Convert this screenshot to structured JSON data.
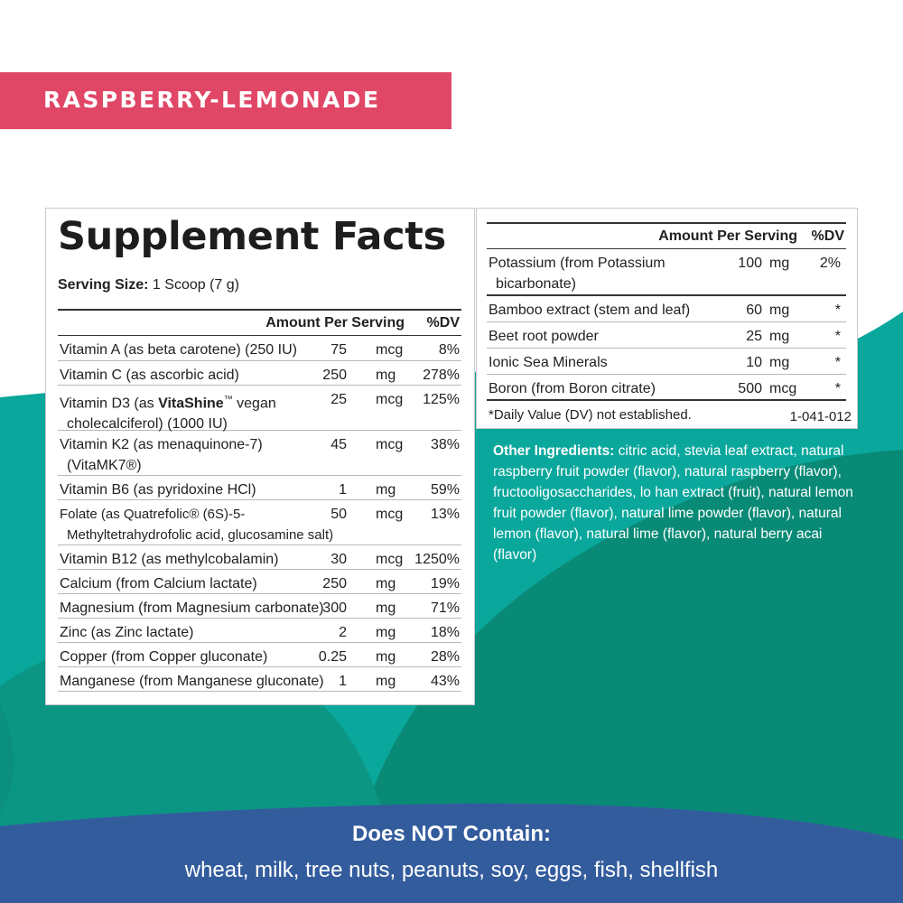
{
  "colors": {
    "banner": "#e04767",
    "teal_light": "#0aa79c",
    "teal_dark": "#098a76",
    "blue_band": "#335c9d",
    "white": "#ffffff"
  },
  "banner": {
    "label": "RASPBERRY-LEMONADE"
  },
  "facts": {
    "title": "Supplement Facts",
    "serving_label": "Serving Size:",
    "serving_value": " 1 Scoop (7 g)",
    "header_amount": "Amount Per Serving",
    "header_dv": "%DV",
    "rows": [
      {
        "name": "Vitamin A (as beta carotene) (250 IU)",
        "amount": "75",
        "unit": "mcg",
        "dv": "8%"
      },
      {
        "name": "Vitamin C (as ascorbic acid)",
        "amount": "250",
        "unit": "mg",
        "dv": "278%"
      },
      {
        "name_pre": "Vitamin D3 (as ",
        "name_bold": "VitaShine",
        "name_mark": "™",
        "name_post": " vegan",
        "name_line2": "cholecalciferol) (1000 IU)",
        "amount": "25",
        "unit": "mcg",
        "dv": "125%"
      },
      {
        "name": "Vitamin K2 (as menaquinone-7)",
        "name_line2": "(VitaMK7®)",
        "amount": "45",
        "unit": "mcg",
        "dv": "38%"
      },
      {
        "name": "Vitamin B6 (as pyridoxine HCl)",
        "amount": "1",
        "unit": "mg",
        "dv": "59%"
      },
      {
        "name": "Folate (as Quatrefolic® (6S)-5-",
        "name_line2": "Methyltetrahydrofolic acid, glucosamine salt)",
        "amount": "50",
        "unit": "mcg",
        "dv": "13%"
      },
      {
        "name": "Vitamin B12 (as methylcobalamin)",
        "amount": "30",
        "unit": "mcg",
        "dv": "1250%"
      },
      {
        "name": "Calcium (from Calcium lactate)",
        "amount": "250",
        "unit": "mg",
        "dv": "19%"
      },
      {
        "name": "Magnesium (from Magnesium carbonate)",
        "amount": "300",
        "unit": "mg",
        "dv": "71%"
      },
      {
        "name": "Zinc (as Zinc lactate)",
        "amount": "2",
        "unit": "mg",
        "dv": "18%"
      },
      {
        "name": "Copper (from Copper gluconate)",
        "amount": "0.25",
        "unit": "mg",
        "dv": "28%"
      },
      {
        "name": "Manganese (from Manganese gluconate)",
        "amount": "1",
        "unit": "mg",
        "dv": "43%"
      }
    ]
  },
  "facts_right": {
    "header_amount": "Amount Per Serving",
    "header_dv": "%DV",
    "rows": [
      {
        "name": "Potassium (from Potassium",
        "name_line2": "bicarbonate)",
        "amount": "100",
        "unit": "mg",
        "dv": "2%"
      },
      {
        "name": "Bamboo extract (stem and leaf)",
        "amount": "60",
        "unit": "mg",
        "dv": "*"
      },
      {
        "name": "Beet root powder",
        "amount": "25",
        "unit": "mg",
        "dv": "*"
      },
      {
        "name": "Ionic Sea Minerals",
        "amount": "10",
        "unit": "mg",
        "dv": "*"
      },
      {
        "name": "Boron (from Boron citrate)",
        "amount": "500",
        "unit": "mcg",
        "dv": "*"
      }
    ],
    "footnote": "*Daily Value (DV) not established.",
    "code": "1-041-012"
  },
  "other_ingredients": {
    "label": "Other Ingredients:",
    "text": " citric acid, stevia leaf extract, natural raspberry fruit powder (flavor), natural raspberry (flavor), fructooligosaccharides, lo han extract (fruit), natural lemon fruit powder (flavor), natural lime powder (flavor), natural lemon (flavor), natural lime (flavor), natural berry acai (flavor)"
  },
  "does_not_contain": {
    "title": "Does NOT Contain:",
    "list": "wheat, milk, tree nuts, peanuts, soy, eggs, fish, shellfish"
  }
}
